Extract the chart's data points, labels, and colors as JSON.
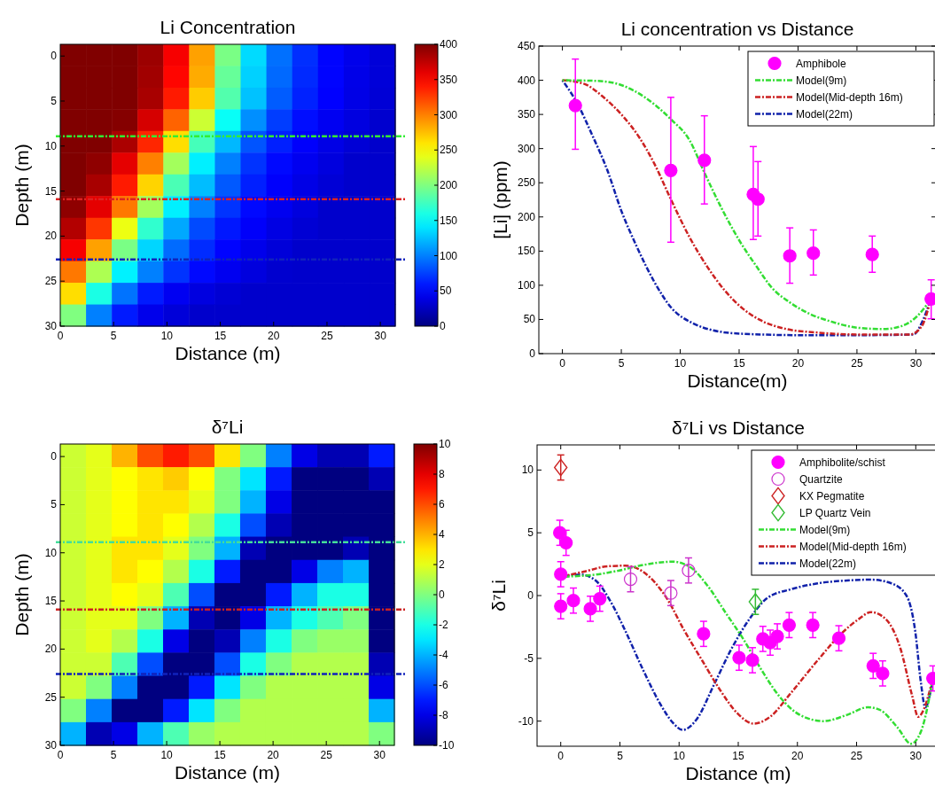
{
  "chart_data": [
    {
      "type": "heatmap",
      "title": "Li Concentration",
      "xlabel": "Distance (m)",
      "ylabel": "Depth (m)",
      "xlim": [
        0,
        31.4
      ],
      "ylim": [
        30,
        -1.3
      ],
      "xticks": [
        0,
        5,
        10,
        15,
        20,
        25,
        30
      ],
      "yticks": [
        0,
        5,
        10,
        15,
        20,
        25,
        30
      ],
      "clim": [
        0,
        400
      ],
      "cticks": [
        0,
        50,
        100,
        150,
        200,
        250,
        300,
        350,
        400
      ],
      "x": [
        1.21,
        3.62,
        6.04,
        8.45,
        10.87,
        13.28,
        15.7,
        18.11,
        20.53,
        22.95,
        25.36,
        27.78,
        30.19
      ],
      "y": [
        -0.1,
        2.31,
        4.72,
        7.12,
        9.53,
        11.94,
        14.35,
        16.76,
        19.17,
        21.57,
        23.98,
        26.39,
        28.8
      ],
      "cells": [
        [
          400,
          400,
          400,
          389,
          353,
          287,
          198,
          136,
          94,
          68,
          51,
          42,
          35
        ],
        [
          400,
          400,
          400,
          387,
          348,
          283,
          190,
          132,
          91,
          66,
          51,
          41,
          35
        ],
        [
          400,
          400,
          400,
          384,
          340,
          270,
          182,
          126,
          86,
          63,
          50,
          40,
          34
        ],
        [
          400,
          400,
          398,
          366,
          311,
          230,
          153,
          106,
          74,
          55,
          45,
          38,
          31
        ],
        [
          400,
          400,
          383,
          335,
          263,
          177,
          122,
          83,
          62,
          49,
          40,
          34,
          30
        ],
        [
          400,
          394,
          360,
          300,
          214,
          144,
          100,
          70,
          53,
          44,
          37,
          30,
          30
        ],
        [
          400,
          384,
          340,
          267,
          179,
          124,
          85,
          62,
          49,
          40,
          34,
          30,
          30
        ],
        [
          394,
          360,
          303,
          214,
          144,
          100,
          70,
          53,
          44,
          37,
          30,
          30,
          30
        ],
        [
          380,
          329,
          243,
          169,
          116,
          79,
          59,
          48,
          39,
          33,
          30,
          30,
          30
        ],
        [
          353,
          287,
          198,
          134,
          92,
          67,
          51,
          42,
          35,
          30,
          30,
          30,
          30
        ],
        [
          303,
          218,
          145,
          100,
          70,
          53,
          44,
          37,
          31,
          30,
          30,
          30,
          30
        ],
        [
          263,
          160,
          95,
          60,
          45,
          38,
          33,
          30,
          30,
          30,
          30,
          30,
          30
        ],
        [
          200,
          100,
          60,
          42,
          35,
          30,
          30,
          30,
          30,
          30,
          30,
          30,
          30
        ]
      ],
      "ref_lines": [
        {
          "axis": "y",
          "value": 8.9,
          "color": "#33ee33",
          "line_style": "dashed"
        },
        {
          "axis": "y",
          "value": 15.9,
          "color": "#dd2222",
          "line_style": "dashed"
        },
        {
          "axis": "y",
          "value": 22.6,
          "color": "#1122bb",
          "line_style": "dashed"
        }
      ]
    },
    {
      "type": "scatter",
      "title": "Li concentration vs Distance",
      "xlabel": "Distance(m)",
      "ylabel": "[Li] (ppm)",
      "xlim": [
        -2,
        31.7
      ],
      "ylim": [
        0,
        450
      ],
      "xticks": [
        0,
        5,
        10,
        15,
        20,
        25,
        30
      ],
      "yticks": [
        0,
        50,
        100,
        150,
        200,
        250,
        300,
        350,
        400,
        450
      ],
      "legend": "top right",
      "series": [
        {
          "name": "Amphibole",
          "type": "scatter",
          "marker": "circle",
          "color": "#ff00ff",
          "x": [
            1.1,
            9.2,
            12.05,
            16.2,
            16.6,
            19.3,
            21.3,
            26.3,
            31.3
          ],
          "values": [
            363,
            268,
            283,
            233,
            226,
            143,
            147,
            145,
            80
          ],
          "errors": [
            [
              299,
              431
            ],
            [
              163,
              375
            ],
            [
              219,
              348
            ],
            [
              167,
              303
            ],
            [
              172,
              281
            ],
            [
              103,
              184
            ],
            [
              115,
              181
            ],
            [
              119,
              172
            ],
            [
              51,
              108
            ]
          ]
        },
        {
          "name": "Model(9m)",
          "type": "line",
          "line_style": "dashed",
          "color": "#33dd33",
          "x": [
            0,
            3,
            5,
            7,
            9.2,
            10.8,
            12.05,
            13.5,
            15,
            16.5,
            17.8,
            19.3,
            21,
            22.8,
            25,
            27.2,
            28.75,
            30,
            31.25
          ],
          "values": [
            400,
            399,
            393,
            375,
            343,
            312,
            265,
            213,
            166,
            127,
            96,
            75,
            58,
            47,
            38,
            36,
            40,
            53,
            79
          ]
        },
        {
          "name": "Model(Mid-depth 16m)",
          "type": "line",
          "line_style": "dashed",
          "color": "#cc2222",
          "x": [
            0,
            1.8,
            3.5,
            5,
            6.5,
            7.8,
            9.2,
            10.8,
            12.3,
            13.8,
            15.3,
            16.8,
            19,
            21.5,
            25.2,
            29.5,
            30.5,
            31.25
          ],
          "values": [
            400,
            395,
            375,
            350,
            317,
            278,
            226,
            170,
            127,
            92,
            66,
            49,
            36,
            31,
            28,
            28,
            40,
            79
          ]
        },
        {
          "name": "Model(22m)",
          "type": "line",
          "line_style": "dashed",
          "color": "#1122aa",
          "x": [
            0,
            1.3,
            2.5,
            3.8,
            5,
            6.3,
            7.8,
            9.3,
            11,
            12.8,
            15.3,
            20.3,
            25.3,
            29.8,
            30.5,
            31.25
          ],
          "values": [
            400,
            365,
            321,
            269,
            209,
            157,
            105,
            66,
            45,
            34,
            29,
            27,
            27,
            28,
            45,
            79
          ]
        }
      ]
    },
    {
      "type": "heatmap",
      "title": "δ⁷Li",
      "xlabel": "Distance (m)",
      "ylabel": "Depth (m)",
      "xlim": [
        0,
        31.4
      ],
      "ylim": [
        30,
        -1.3
      ],
      "xticks": [
        0,
        5,
        10,
        15,
        20,
        25,
        30
      ],
      "yticks": [
        0,
        5,
        10,
        15,
        20,
        25,
        30
      ],
      "clim": [
        -10,
        10
      ],
      "cticks": [
        -10,
        -8,
        -6,
        -4,
        -2,
        0,
        2,
        4,
        6,
        8,
        10
      ],
      "x": [
        1.21,
        3.62,
        6.04,
        8.45,
        10.87,
        13.28,
        15.7,
        18.11,
        20.53,
        22.95,
        25.36,
        27.78,
        30.19
      ],
      "y": [
        -0.1,
        2.31,
        4.72,
        7.12,
        9.53,
        11.94,
        14.35,
        16.76,
        19.17,
        21.57,
        23.98,
        26.39,
        28.8
      ],
      "cells": [
        [
          1.5,
          2,
          4,
          6,
          7,
          6,
          3,
          0,
          -5,
          -8,
          -9,
          -9,
          -7
        ],
        [
          1.5,
          2,
          2.5,
          3,
          3.5,
          2.5,
          0,
          -3,
          -7,
          -10,
          -10,
          -10,
          -9
        ],
        [
          1.5,
          2,
          2.5,
          3,
          3,
          2,
          0,
          -4,
          -8,
          -10,
          -10,
          -10,
          -10
        ],
        [
          1.5,
          2,
          2.5,
          3,
          2.5,
          1,
          -2,
          -6,
          -9,
          -10,
          -10,
          -10,
          -10
        ],
        [
          1.5,
          2,
          3,
          3,
          2,
          0,
          -4,
          -9,
          -10,
          -10,
          -10,
          -9,
          -10
        ],
        [
          1.5,
          2,
          3,
          2.5,
          1,
          -2,
          -7,
          -10,
          -10,
          -8,
          -5,
          -4,
          -10
        ],
        [
          1.5,
          2,
          2.5,
          2,
          -1,
          -6,
          -10,
          -10,
          -7,
          -4,
          -2,
          -2,
          -10
        ],
        [
          1.5,
          2,
          2,
          0,
          -4,
          -9,
          -10,
          -8,
          -4,
          -2,
          -1,
          0,
          -10
        ],
        [
          1.5,
          2,
          1,
          -2,
          -8,
          -10,
          -9,
          -5,
          -2,
          0,
          0.5,
          0.5,
          -10
        ],
        [
          1.5,
          1.5,
          -1,
          -6,
          -10,
          -10,
          -6,
          -2,
          0,
          1,
          1,
          1,
          -9
        ],
        [
          1.5,
          0,
          -5,
          -10,
          -10,
          -7,
          -3,
          0,
          1,
          1,
          1,
          1,
          -8
        ],
        [
          0,
          -5,
          -10,
          -10,
          -7,
          -3,
          0,
          1,
          1,
          1,
          1,
          1,
          -4
        ],
        [
          -4,
          -9,
          -8,
          -4,
          -1,
          0.5,
          1,
          1,
          1,
          1,
          1,
          1,
          0
        ]
      ],
      "ref_lines": [
        {
          "axis": "y",
          "value": 8.9,
          "color": "#44dd99",
          "line_style": "dashed"
        },
        {
          "axis": "y",
          "value": 15.9,
          "color": "#cc2222",
          "line_style": "dashed"
        },
        {
          "axis": "y",
          "value": 22.6,
          "color": "#1122bb",
          "line_style": "dashed"
        }
      ]
    },
    {
      "type": "scatter",
      "title": "δ⁷Li vs Distance",
      "xlabel": "Distance (m)",
      "ylabel": "δ⁷Li",
      "xlim": [
        -2,
        32
      ],
      "ylim": [
        -12,
        12
      ],
      "xticks": [
        0,
        5,
        10,
        15,
        20,
        25,
        30
      ],
      "yticks": [
        -10,
        -5,
        0,
        5,
        10
      ],
      "legend": "top right",
      "series": [
        {
          "name": "Amphibolite/schist",
          "type": "scatter",
          "marker": "circle",
          "color": "#ff00ff",
          "x": [
            -0.08,
            0.45,
            0,
            0,
            1.07,
            2.5,
            3.3,
            12.07,
            15.07,
            16.2,
            17.08,
            17.7,
            18.3,
            19.3,
            21.3,
            23.5,
            26.4,
            27.2,
            31.45
          ],
          "values": [
            5.0,
            4.2,
            1.7,
            -0.85,
            -0.4,
            -1.05,
            -0.25,
            -3.05,
            -4.95,
            -5.15,
            -3.45,
            -3.75,
            -3.25,
            -2.35,
            -2.35,
            -3.4,
            -5.6,
            -6.2,
            -6.6
          ],
          "errors": [
            1,
            1,
            1,
            1,
            1,
            1,
            1,
            1,
            1,
            1,
            1,
            1,
            1,
            1,
            1,
            1,
            1,
            1,
            1
          ]
        },
        {
          "name": "Quartzite",
          "type": "scatter",
          "marker": "circle",
          "color": "#cc33cc",
          "x": [
            5.9,
            9.3,
            10.8
          ],
          "values": [
            1.3,
            0.2,
            2.0
          ],
          "errors": [
            1,
            1,
            1
          ]
        },
        {
          "name": "KX Pegmatite",
          "type": "scatter",
          "marker": "diamond",
          "color": "#cc2222",
          "x": [
            0
          ],
          "values": [
            10.2
          ],
          "errors": [
            1
          ]
        },
        {
          "name": "LP Quartz Vein",
          "type": "scatter",
          "marker": "diamond",
          "color": "#33bb33",
          "x": [
            16.45
          ],
          "values": [
            -0.5
          ],
          "errors": [
            1
          ]
        },
        {
          "name": "Model(9m)",
          "type": "line",
          "line_style": "dashed",
          "color": "#33dd33",
          "x": [
            0,
            2.95,
            4.95,
            6.95,
            9.45,
            10.95,
            12.45,
            13.95,
            15.45,
            16.95,
            18.45,
            20.2,
            22.2,
            24.2,
            25.95,
            26.95,
            28.45,
            29.6,
            30.45,
            31.45
          ],
          "values": [
            1.5,
            1.67,
            2.0,
            2.43,
            2.7,
            2.26,
            0.73,
            -1.39,
            -3.5,
            -5.9,
            -8.0,
            -9.5,
            -10,
            -9.5,
            -8.9,
            -9.1,
            -10.5,
            -11.8,
            -10.8,
            -6.6
          ]
        },
        {
          "name": "Model(Mid-depth 16m)",
          "type": "line",
          "line_style": "dashed",
          "color": "#cc2222",
          "x": [
            0,
            1.95,
            3.95,
            5.45,
            6.95,
            8.95,
            10.45,
            11.95,
            13.45,
            14.95,
            16.3,
            17.7,
            19.45,
            21.7,
            23.7,
            25.2,
            26.2,
            27.45,
            28.7,
            29.7,
            30.2,
            31.45
          ],
          "values": [
            1.5,
            1.9,
            2.33,
            2.38,
            1.9,
            -0.2,
            -2.8,
            -5.17,
            -7.5,
            -9.4,
            -10.2,
            -9.65,
            -7.76,
            -5.17,
            -3.04,
            -1.86,
            -1.32,
            -1.86,
            -4.2,
            -8.0,
            -9.65,
            -6.6
          ]
        },
        {
          "name": "Model(22m)",
          "type": "line",
          "line_style": "dashed",
          "color": "#1122aa",
          "x": [
            0,
            1.7,
            2.95,
            4.2,
            5.45,
            6.95,
            8.45,
            9.45,
            10.3,
            11.45,
            12.95,
            14.45,
            15.95,
            17.45,
            19.45,
            21.7,
            24.2,
            26.2,
            27.95,
            29.2,
            29.95,
            30.45,
            30.8,
            31.45
          ],
          "values": [
            1.5,
            1.67,
            1.2,
            -0.45,
            -2.8,
            -5.9,
            -8.7,
            -10.1,
            -10.7,
            -9.9,
            -7.1,
            -4.2,
            -1.86,
            -0.2,
            0.5,
            0.97,
            1.2,
            1.27,
            0.97,
            0.02,
            -2.8,
            -7.05,
            -8.9,
            -6.6
          ]
        }
      ]
    }
  ]
}
